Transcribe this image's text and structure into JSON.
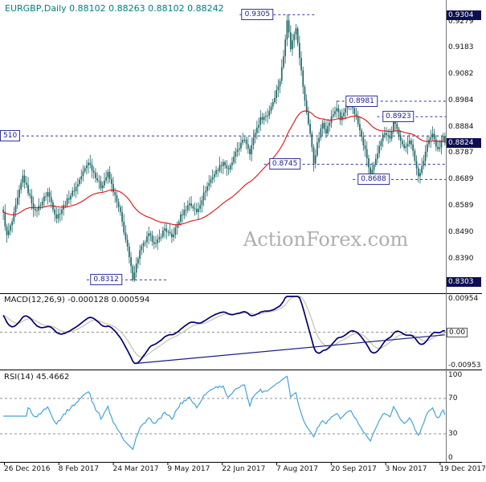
{
  "chart": {
    "symbol": "EURGBP",
    "timeframe": "Daily",
    "title": "EURGBP,Daily 0.88102 0.88263 0.88102 0.88242",
    "quote": {
      "open": "0.88102",
      "high": "0.88263",
      "low": "0.88102",
      "close": "0.88242"
    },
    "watermark": "ActionForex.com",
    "colors": {
      "candle": "#206868",
      "ma": "#dd1111",
      "macd_line": "#00006e",
      "macd_signal": "#c9c0ab",
      "macd_trendline": "#1a1a80",
      "rsi": "#44a3da",
      "annotation_line": "#34349a",
      "grid_dash": "#909090",
      "separator": "#000000",
      "axis_divider": "#777777",
      "highlight_box_bg": "#0e0e52",
      "highlight_box_text": "#ffffff",
      "title_color": "#008080"
    }
  },
  "chart_data": {
    "type": "candlestick",
    "panels": [
      "price",
      "MACD",
      "RSI"
    ],
    "x_labels": [
      "26 Dec 2016",
      "8 Feb 2017",
      "24 Mar 2017",
      "9 May 2017",
      "22 Jun 2017",
      "7 Aug 2017",
      "20 Sep 2017",
      "3 Nov 2017",
      "19 Dec 2017"
    ],
    "n_candles": 250,
    "price_axis": {
      "range_max": 0.936,
      "range_min": 0.8262,
      "ticks": [
        "0.9279",
        "0.9183",
        "0.9082",
        "0.8984",
        "0.8884",
        "0.8787",
        "0.8689",
        "0.8589",
        "0.8490",
        "0.8390"
      ],
      "highlight_boxes": [
        {
          "label": "0.9304",
          "price": 0.9304
        },
        {
          "label": "0.8824",
          "price": 0.8824
        },
        {
          "label": "0.8303",
          "price": 0.8303
        }
      ]
    },
    "extremes": {
      "high": 0.9305,
      "high_index": 160,
      "low": 0.8305,
      "low_index": 73
    },
    "moving_average": {
      "type": "EMA",
      "period": 55
    },
    "close_path_waypoints": [
      [
        0,
        0.856
      ],
      [
        2,
        0.8475
      ],
      [
        5,
        0.853
      ],
      [
        11,
        0.87
      ],
      [
        18,
        0.8565
      ],
      [
        25,
        0.864
      ],
      [
        30,
        0.8545
      ],
      [
        36,
        0.861
      ],
      [
        41,
        0.866
      ],
      [
        48,
        0.8755
      ],
      [
        55,
        0.866
      ],
      [
        59,
        0.871
      ],
      [
        66,
        0.856
      ],
      [
        70,
        0.843
      ],
      [
        73,
        0.832
      ],
      [
        77,
        0.842
      ],
      [
        82,
        0.848
      ],
      [
        86,
        0.8445
      ],
      [
        91,
        0.8505
      ],
      [
        95,
        0.847
      ],
      [
        100,
        0.855
      ],
      [
        105,
        0.86
      ],
      [
        109,
        0.8565
      ],
      [
        114,
        0.865
      ],
      [
        118,
        0.87
      ],
      [
        124,
        0.8755
      ],
      [
        127,
        0.872
      ],
      [
        132,
        0.88
      ],
      [
        136,
        0.884
      ],
      [
        139,
        0.879
      ],
      [
        142,
        0.8865
      ],
      [
        145,
        0.8915
      ],
      [
        149,
        0.893
      ],
      [
        152,
        0.898
      ],
      [
        156,
        0.906
      ],
      [
        158,
        0.915
      ],
      [
        160,
        0.929
      ],
      [
        162,
        0.918
      ],
      [
        165,
        0.926
      ],
      [
        167,
        0.915
      ],
      [
        170,
        0.898
      ],
      [
        173,
        0.886
      ],
      [
        175,
        0.875
      ],
      [
        177,
        0.882
      ],
      [
        180,
        0.89
      ],
      [
        182,
        0.8868
      ],
      [
        185,
        0.892
      ],
      [
        188,
        0.8958
      ],
      [
        190,
        0.891
      ],
      [
        193,
        0.895
      ],
      [
        196,
        0.8975
      ],
      [
        199,
        0.892
      ],
      [
        201,
        0.887
      ],
      [
        205,
        0.877
      ],
      [
        207,
        0.8695
      ],
      [
        210,
        0.876
      ],
      [
        212,
        0.882
      ],
      [
        215,
        0.8868
      ],
      [
        218,
        0.884
      ],
      [
        220,
        0.8905
      ],
      [
        223,
        0.886
      ],
      [
        226,
        0.88
      ],
      [
        229,
        0.884
      ],
      [
        231,
        0.879
      ],
      [
        234,
        0.87
      ],
      [
        237,
        0.876
      ],
      [
        239,
        0.882
      ],
      [
        242,
        0.8858
      ],
      [
        245,
        0.8795
      ],
      [
        247,
        0.883
      ],
      [
        248,
        0.8858
      ],
      [
        249,
        0.88242
      ]
    ],
    "annotations": [
      {
        "label": "0.9305",
        "price": 0.9305,
        "box_t": 0.575,
        "line_t": [
          0.535,
          0.705
        ],
        "align": "center"
      },
      {
        "label": "0.8981",
        "price": 0.8981,
        "box_t": 0.81,
        "line_t": [
          0.755,
          1.0
        ],
        "align": "center"
      },
      {
        "label": "0.8923",
        "price": 0.8923,
        "box_t": 0.893,
        "line_t": [
          0.845,
          1.0
        ],
        "align": "center"
      },
      {
        "label": "0.8745",
        "price": 0.8745,
        "box_t": 0.637,
        "line_t": [
          0.59,
          1.0
        ],
        "align": "center"
      },
      {
        "label": "0.8688",
        "price": 0.8688,
        "box_t": 0.837,
        "line_t": [
          0.79,
          1.0
        ],
        "align": "center"
      },
      {
        "label": "0.8312",
        "price": 0.8312,
        "box_t": 0.234,
        "line_t": [
          0.19,
          0.37
        ],
        "align": "center"
      },
      {
        "label": "510",
        "price": 0.8851,
        "box_t": 0.0,
        "line_t": [
          0.0,
          1.0
        ],
        "align": "left-edge"
      }
    ],
    "macd": {
      "label": "MACD(12,26,9) -0.000128 0.000594",
      "params": [
        12,
        26,
        9
      ],
      "line_value": -0.000128,
      "signal_value": 0.000594,
      "axis_max": 0.00954,
      "axis_min": -0.00953,
      "axis_max_label": "0.00954",
      "axis_min_label": "-0.00953",
      "zero_label": "0.00",
      "trendline_end_value": -0.0007
    },
    "rsi": {
      "label": "RSI(14) 45.4662",
      "period": 14,
      "value": 45.4662,
      "levels": [
        70,
        30
      ],
      "axis_labels": [
        "100",
        "70",
        "30",
        "0"
      ],
      "axis_values": [
        100,
        70,
        30,
        0
      ]
    }
  }
}
